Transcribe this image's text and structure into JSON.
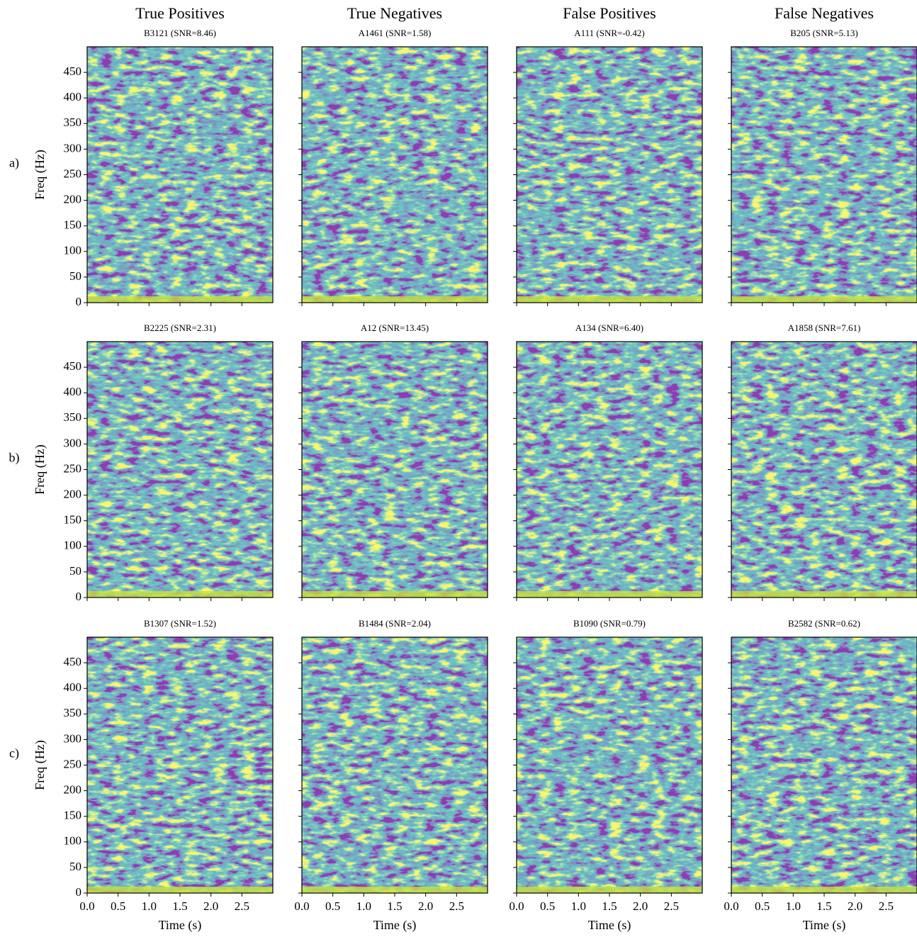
{
  "column_titles": [
    "True Positives",
    "True Negatives",
    "False Positives",
    "False Negatives"
  ],
  "row_labels": [
    "a)",
    "b)",
    "c)"
  ],
  "axes": {
    "xlim": [
      0,
      3
    ],
    "ylim": [
      0,
      500
    ],
    "xticks": [
      {
        "value": 0,
        "label": "0.0"
      },
      0.5,
      {
        "value": 1,
        "label": "1.0"
      },
      1.5,
      {
        "value": 2,
        "label": "2.0"
      },
      2.5
    ],
    "yticks": [
      0,
      50,
      100,
      150,
      200,
      250,
      300,
      350,
      400,
      450
    ]
  },
  "chart_data": [
    {
      "type": "heatmap",
      "title": "B3121 (SNR=8.46)",
      "ylabel": "Freq (Hz)"
    },
    {
      "type": "heatmap",
      "title": "A1461 (SNR=1.58)"
    },
    {
      "type": "heatmap",
      "title": "A111 (SNR=-0.42)"
    },
    {
      "type": "heatmap",
      "title": "B205 (SNR=5.13)"
    },
    {
      "type": "heatmap",
      "title": "B2225 (SNR=2.31)",
      "ylabel": "Freq (Hz)"
    },
    {
      "type": "heatmap",
      "title": "A12 (SNR=13.45)"
    },
    {
      "type": "heatmap",
      "title": "A134 (SNR=6.40)"
    },
    {
      "type": "heatmap",
      "title": "A1858 (SNR=7.61)"
    },
    {
      "type": "heatmap",
      "title": "B1307 (SNR=1.52)",
      "ylabel": "Freq (Hz)",
      "xlabel": "Time (s)"
    },
    {
      "type": "heatmap",
      "title": "B1484 (SNR=2.04)",
      "xlabel": "Time (s)"
    },
    {
      "type": "heatmap",
      "title": "B1090 (SNR=0.79)",
      "xlabel": "Time (s)"
    },
    {
      "type": "heatmap",
      "title": "B2582 (SNR=0.62)",
      "xlabel": "Time (s)"
    }
  ]
}
